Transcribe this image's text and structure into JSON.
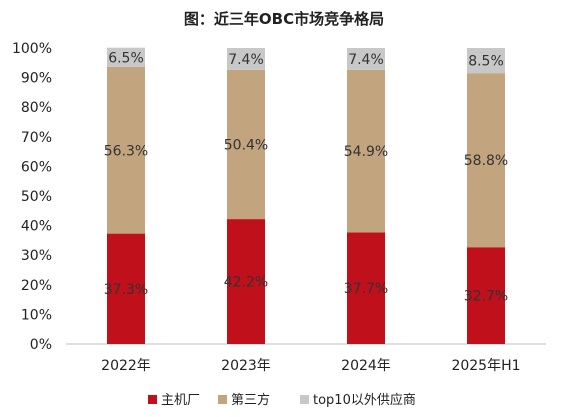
{
  "chart_data": {
    "type": "bar",
    "stacked": true,
    "title": "图：近三年OBC市场竞争格局",
    "categories": [
      "2022年",
      "2023年",
      "2024年",
      "2025年H1"
    ],
    "series": [
      {
        "name": "主机厂",
        "values": [
          37.3,
          42.2,
          37.7,
          32.7
        ],
        "labels": [
          "37.3%",
          "42.2%",
          "37.7%",
          "32.7%"
        ],
        "color": "#c0101c"
      },
      {
        "name": "第三方",
        "values": [
          56.3,
          50.4,
          54.9,
          58.8
        ],
        "labels": [
          "56.3%",
          "50.4%",
          "54.9%",
          "58.8%"
        ],
        "color": "#c2a47e"
      },
      {
        "name": "top10以外供应商",
        "values": [
          6.5,
          7.4,
          7.4,
          8.5
        ],
        "labels": [
          "6.5%",
          "7.4%",
          "7.4%",
          "8.5%"
        ],
        "color": "#c8c8c8"
      }
    ],
    "yticks": [
      "0%",
      "10%",
      "20%",
      "30%",
      "40%",
      "50%",
      "60%",
      "70%",
      "80%",
      "90%",
      "100%"
    ],
    "ylim": [
      0,
      100
    ],
    "xlabel": "",
    "ylabel": "",
    "grid": false,
    "legend": "bottom"
  }
}
